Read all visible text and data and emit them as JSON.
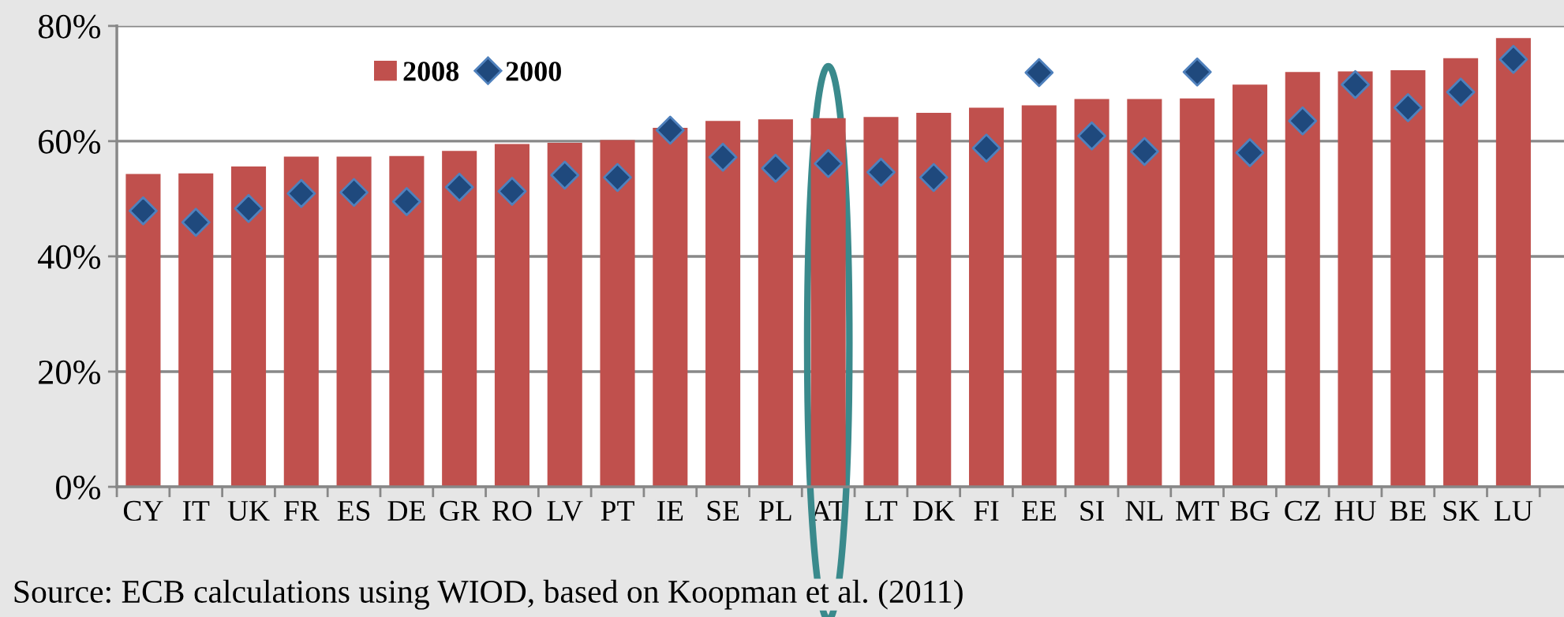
{
  "chart_data": {
    "type": "bar",
    "categories": [
      "CY",
      "IT",
      "UK",
      "FR",
      "ES",
      "DE",
      "GR",
      "RO",
      "LV",
      "PT",
      "IE",
      "SE",
      "PL",
      "AT",
      "LT",
      "DK",
      "FI",
      "EE",
      "SI",
      "NL",
      "MT",
      "BG",
      "CZ",
      "HU",
      "BE",
      "SK",
      "LU"
    ],
    "series": [
      {
        "name": "2008",
        "color": "#c0504d",
        "values": [
          54.3,
          54.4,
          55.6,
          57.3,
          57.3,
          57.4,
          58.3,
          59.5,
          59.7,
          60.2,
          62.3,
          63.5,
          63.8,
          64.0,
          64.2,
          64.9,
          65.8,
          66.2,
          67.3,
          67.3,
          67.4,
          69.8,
          72.0,
          72.1,
          72.3,
          74.4,
          77.9
        ]
      },
      {
        "name": "2000",
        "type": "scatter",
        "color": "#1f497d",
        "marker": "diamond",
        "values": [
          47.9,
          45.9,
          48.3,
          50.9,
          51.1,
          49.5,
          52.0,
          51.3,
          54.1,
          53.7,
          61.9,
          57.2,
          55.3,
          56.1,
          54.6,
          53.7,
          58.8,
          71.9,
          60.9,
          58.2,
          72.0,
          58.0,
          63.5,
          69.8,
          65.8,
          68.5,
          74.2
        ]
      }
    ],
    "ylim": [
      0,
      80
    ],
    "yticks": [
      {
        "value": 0,
        "label": "0%"
      },
      {
        "value": 20,
        "label": "20%"
      },
      {
        "value": 40,
        "label": "40%"
      },
      {
        "value": 60,
        "label": "60%"
      },
      {
        "value": 80,
        "label": "80%"
      }
    ],
    "grid": "y",
    "legend": "top left",
    "annotations": [
      "Source: ECB calculations using WIOD, based on Koopman et al. (2011)"
    ]
  }
}
